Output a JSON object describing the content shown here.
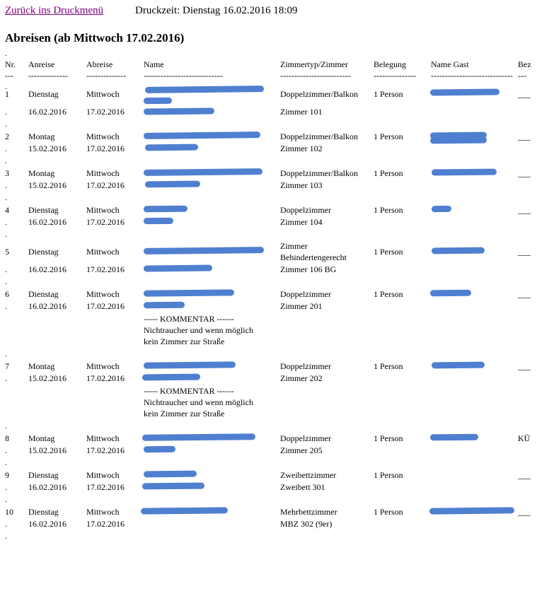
{
  "nav": {
    "back_link": "Zurück ins Druckmenü",
    "print_time": "Druckzeit: Dienstag 16.02.2016 18:09"
  },
  "title": "Abreisen (ab Mittwoch 17.02.2016)",
  "dot": ".",
  "headers": {
    "nr": "Nr.",
    "arrival": "Anreise",
    "departure": "Abreise",
    "name": "Name",
    "room_type": "Zimmertyp/Zimmer",
    "occupancy": "Belegung",
    "guest_name": "Name Gast",
    "paid": "Bez"
  },
  "dashes": {
    "nr": "---",
    "arrival": "--------------",
    "departure": "--------------",
    "name": "----------------------------",
    "room_type": "-------------------------",
    "occupancy": "---------------",
    "guest_name": "-----------------------------",
    "paid": "---"
  },
  "comment": {
    "header": "----- KOMMENTAR ------",
    "line1": "Nichtraucher und wenn möglich",
    "line2": "kein Zimmer zur Straße"
  },
  "rows": [
    {
      "nr": "1",
      "arr_day": "Dienstag",
      "arr_date": "16.02.2016",
      "dep_day": "Mittwoch",
      "dep_date": "17.02.2016",
      "type": "Doppelzimmer/Balkon",
      "room": "Zimmer 101",
      "occ": "1 Person",
      "paid": "___"
    },
    {
      "nr": "2",
      "arr_day": "Montag",
      "arr_date": "15.02.2016",
      "dep_day": "Mittwoch",
      "dep_date": "17.02.2016",
      "type": "Doppelzimmer/Balkon",
      "room": "Zimmer 102",
      "occ": "1 Person",
      "paid": "___"
    },
    {
      "nr": "3",
      "arr_day": "Montag",
      "arr_date": "15.02.2016",
      "dep_day": "Mittwoch",
      "dep_date": "17.02.2016",
      "type": "Doppelzimmer/Balkon",
      "room": "Zimmer 103",
      "occ": "1 Person",
      "paid": "___"
    },
    {
      "nr": "4",
      "arr_day": "Dienstag",
      "arr_date": "16.02.2016",
      "dep_day": "Mittwoch",
      "dep_date": "17.02.2016",
      "type": "Doppelzimmer",
      "room": "Zimmer 104",
      "occ": "1 Person",
      "paid": "___"
    },
    {
      "nr": "5",
      "arr_day": "Dienstag",
      "arr_date": "16.02.2016",
      "dep_day": "Mittwoch",
      "dep_date": "17.02.2016",
      "type": "Zimmer",
      "type2": "Behindertengerecht",
      "room": "Zimmer 106 BG",
      "occ": "1 Person",
      "paid": "___"
    },
    {
      "nr": "6",
      "arr_day": "Dienstag",
      "arr_date": "16.02.2016",
      "dep_day": "Mittwoch",
      "dep_date": "17.02.2016",
      "type": "Doppelzimmer",
      "room": "Zimmer 201",
      "occ": "1 Person",
      "paid": "___"
    },
    {
      "nr": "7",
      "arr_day": "Montag",
      "arr_date": "15.02.2016",
      "dep_day": "Mittwoch",
      "dep_date": "17.02.2016",
      "type": "Doppelzimmer",
      "room": "Zimmer 202",
      "occ": "1 Person",
      "paid": "___"
    },
    {
      "nr": "8",
      "arr_day": "Montag",
      "arr_date": "15.02.2016",
      "dep_day": "Mittwoch",
      "dep_date": "17.02.2016",
      "type": "Doppelzimmer",
      "room": "Zimmer 205",
      "occ": "1 Person",
      "paid": "KÜ"
    },
    {
      "nr": "9",
      "arr_day": "Dienstag",
      "arr_date": "16.02.2016",
      "dep_day": "Mittwoch",
      "dep_date": "17.02.2016",
      "type": "Zweibettzimmer",
      "room": "Zweibett 301",
      "occ": "1 Person",
      "paid": "___"
    },
    {
      "nr": "10",
      "arr_day": "Dienstag",
      "arr_date": "16.02.2016",
      "dep_day": "Mittwoch",
      "dep_date": "17.02.2016",
      "type": "Mehrbettzimmer",
      "room": "MBZ 302 (9er)",
      "occ": "1 Person",
      "paid": "___"
    }
  ],
  "colors": {
    "link_visited": "#800080",
    "redaction": "#4f7fd0"
  }
}
